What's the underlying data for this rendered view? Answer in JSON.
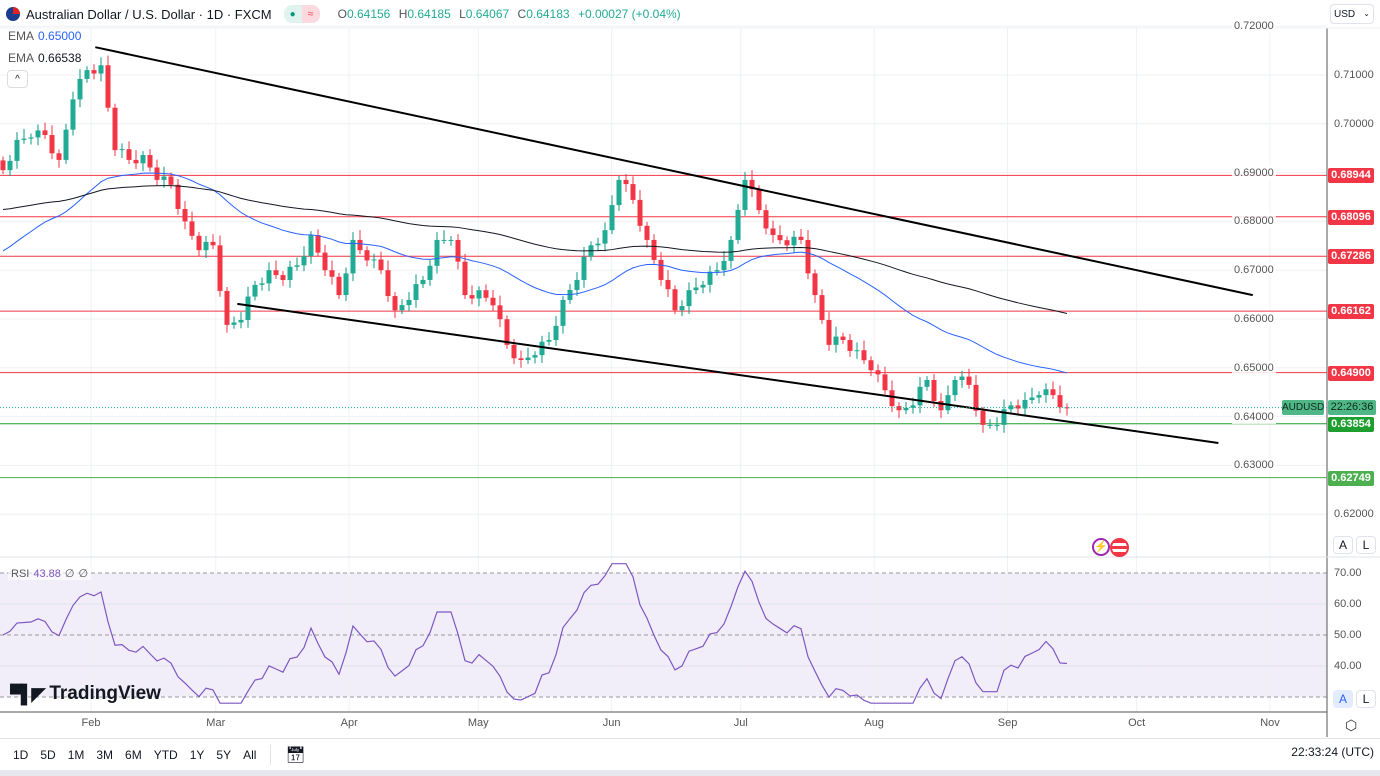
{
  "header": {
    "title": "Australian Dollar / U.S. Dollar · 1D · FXCM",
    "open_label": "O",
    "open": "0.64156",
    "high_label": "H",
    "high": "0.64185",
    "low_label": "L",
    "low": "0.64067",
    "close_label": "C",
    "close": "0.64183",
    "change": "+0.00027 (+0.04%)"
  },
  "indicators": {
    "ema1_label": "EMA",
    "ema1_value": "0.65000",
    "ema2_label": "EMA",
    "ema2_value": "0.66538",
    "collapse_icon": "chevron-up-icon",
    "rsi_label": "RSI",
    "rsi_value": "43.88",
    "rsi_extra1": "∅",
    "rsi_extra2": "∅"
  },
  "currency": "USD",
  "price_axis": {
    "ticks": [
      "0.72000",
      "0.71000",
      "0.70000",
      "0.69000",
      "0.68000",
      "0.67000",
      "0.66000",
      "0.65000",
      "0.64000",
      "0.63000",
      "0.62000"
    ],
    "tick_values": [
      0.72,
      0.71,
      0.7,
      0.69,
      0.68,
      0.67,
      0.66,
      0.65,
      0.64,
      0.63,
      0.62
    ]
  },
  "levels": [
    {
      "label": "0.68944",
      "value": 0.68944,
      "color": "#f23645"
    },
    {
      "label": "0.68096",
      "value": 0.68096,
      "color": "#f23645"
    },
    {
      "label": "0.67286",
      "value": 0.67286,
      "color": "#f23645"
    },
    {
      "label": "0.66162",
      "value": 0.66162,
      "color": "#f23645"
    },
    {
      "label": "0.64900",
      "value": 0.649,
      "color": "#f23645"
    },
    {
      "label": "0.63854",
      "value": 0.63854,
      "color": "#1e9e2f"
    },
    {
      "label": "0.62749",
      "value": 0.62749,
      "color": "#4caf50"
    }
  ],
  "current": {
    "symbol": "AUDUSD",
    "countdown": "22:26:36",
    "price": 0.64183
  },
  "rsi_axis": [
    "70.00",
    "60.00",
    "50.00",
    "40.00"
  ],
  "months": [
    {
      "label": "Feb",
      "day": 31
    },
    {
      "label": "Mar",
      "day": 60
    },
    {
      "label": "Apr",
      "day": 91
    },
    {
      "label": "May",
      "day": 121
    },
    {
      "label": "Jun",
      "day": 152
    },
    {
      "label": "Jul",
      "day": 182
    },
    {
      "label": "Aug",
      "day": 213
    },
    {
      "label": "Sep",
      "day": 244
    },
    {
      "label": "Oct",
      "day": 274
    },
    {
      "label": "Nov",
      "day": 305
    }
  ],
  "trendlines": [
    {
      "from_day": 32,
      "from_price": 0.7157,
      "to_day": 301,
      "to_price": 0.6649
    },
    {
      "from_day": 65,
      "from_price": 0.6631,
      "to_day": 293,
      "to_price": 0.6346
    }
  ],
  "closes": [
    0.6905,
    0.6967,
    0.6972,
    0.6977,
    0.6926,
    0.705,
    0.711,
    0.712,
    0.6946,
    0.6926,
    0.6936,
    0.6885,
    0.6875,
    0.68,
    0.6741,
    0.6751,
    0.6588,
    0.6598,
    0.667,
    0.67,
    0.668,
    0.671,
    0.6772,
    0.67,
    0.6649,
    0.6762,
    0.672,
    0.67,
    0.6618,
    0.6639,
    0.668,
    0.6762,
    0.6762,
    0.6649,
    0.6659,
    0.6628,
    0.6547,
    0.6516,
    0.6526,
    0.6557,
    0.6639,
    0.668,
    0.6751,
    0.6782,
    0.6885,
    0.6844,
    0.6762,
    0.668,
    0.6618,
    0.6659,
    0.667,
    0.67,
    0.6762,
    0.6885,
    0.6823,
    0.6772,
    0.6751,
    0.6762,
    0.6649,
    0.6547,
    0.6557,
    0.6536,
    0.6495,
    0.6454,
    0.6413,
    0.6423,
    0.6475,
    0.6413,
    0.6475,
    0.6465,
    0.6383,
    0.6383,
    0.6423,
    0.6434,
    0.6444,
    0.6444,
    0.6418
  ],
  "ema_seed": {
    "fast": 0.6731,
    "slow": 0.6823
  },
  "bottom": {
    "ranges": [
      "1D",
      "5D",
      "1M",
      "3M",
      "6M",
      "YTD",
      "1Y",
      "5Y",
      "All"
    ],
    "clock": "22:33:24 (UTC)",
    "scale_auto": "A",
    "scale_log": "L",
    "brand": "TradingView"
  }
}
